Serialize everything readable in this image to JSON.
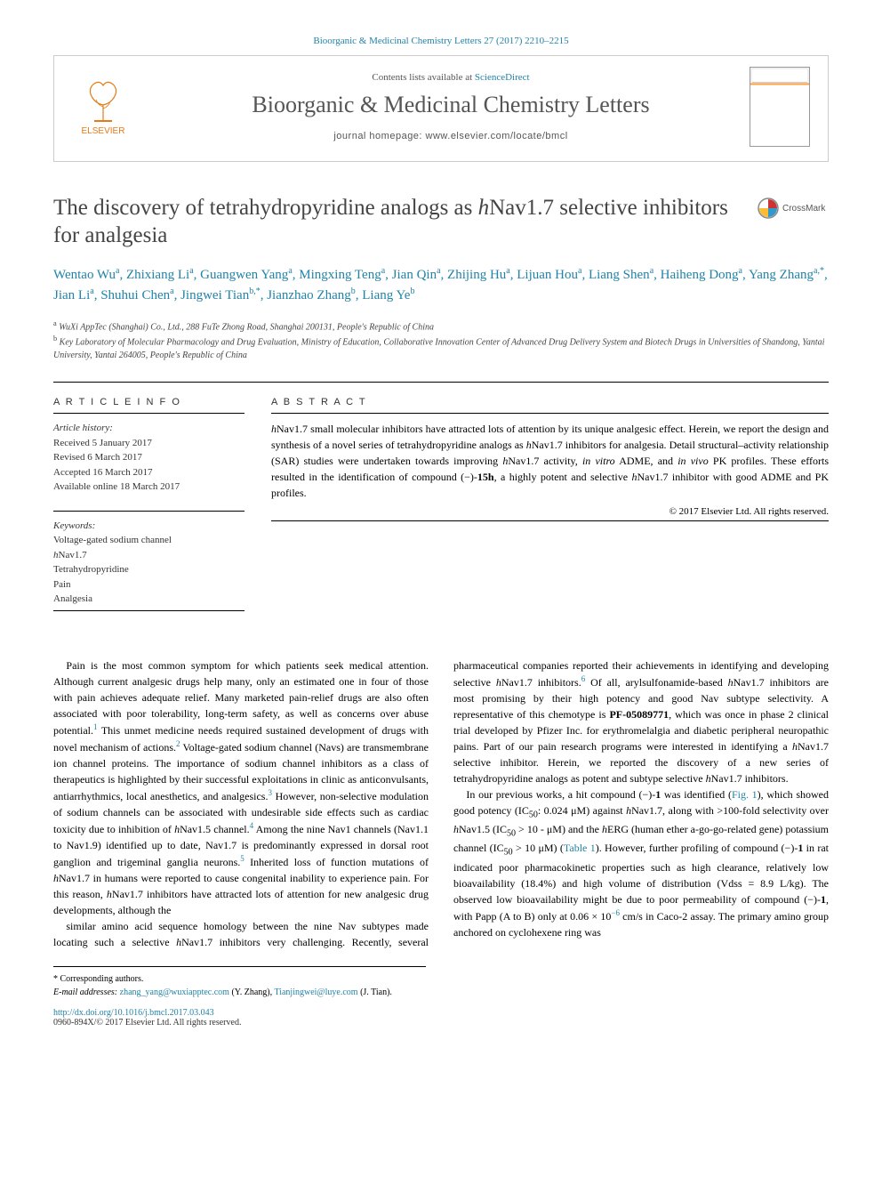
{
  "citation": "Bioorganic & Medicinal Chemistry Letters 27 (2017) 2210–2215",
  "header": {
    "publisher": "ELSEVIER",
    "availLine": "Contents lists available at ",
    "availLink": "ScienceDirect",
    "journal": "Bioorganic & Medicinal Chemistry Letters",
    "homepageLabel": "journal homepage: www.elsevier.com/locate/bmcl"
  },
  "crossmark": "CrossMark",
  "title_pre": "The discovery of tetrahydropyridine analogs as ",
  "title_em": "h",
  "title_post": "Nav1.7 selective inhibitors for analgesia",
  "authors_html": "Wentao Wu<sup>a</sup>, Zhixiang Li<sup>a</sup>, Guangwen Yang<sup>a</sup>, Mingxing Teng<sup>a</sup>, Jian Qin<sup>a</sup>, Zhijing Hu<sup>a</sup>, Lijuan Hou<sup>a</sup>, Liang Shen<sup>a</sup>, Haiheng Dong<sup>a</sup>, Yang Zhang<sup>a,*</sup>, Jian Li<sup>a</sup>, Shuhui Chen<sup>a</sup>, Jingwei Tian<sup>b,*</sup>, Jianzhao Zhang<sup>b</sup>, Liang Ye<sup>b</sup>",
  "affiliations": {
    "a": "WuXi AppTec (Shanghai) Co., Ltd., 288 FuTe Zhong Road, Shanghai 200131, People's Republic of China",
    "b": "Key Laboratory of Molecular Pharmacology and Drug Evaluation, Ministry of Education, Collaborative Innovation Center of Advanced Drug Delivery System and Biotech Drugs in Universities of Shandong, Yantai University, Yantai 264005, People's Republic of China"
  },
  "info": {
    "head": "A R T I C L E   I N F O",
    "historyLabel": "Article history:",
    "received": "Received 5 January 2017",
    "revised": "Revised 6 March 2017",
    "accepted": "Accepted 16 March 2017",
    "online": "Available online 18 March 2017",
    "keywordsLabel": "Keywords:",
    "keywords": [
      "Voltage-gated sodium channel",
      "hNav1.7",
      "Tetrahydropyridine",
      "Pain",
      "Analgesia"
    ]
  },
  "abstract": {
    "head": "A B S T R A C T",
    "text_html": "<em>h</em>Nav1.7 small molecular inhibitors have attracted lots of attention by its unique analgesic effect. Herein, we report the design and synthesis of a novel series of tetrahydropyridine analogs as <em>h</em>Nav1.7 inhibitors for analgesia. Detail structural–activity relationship (SAR) studies were undertaken towards improving <em>h</em>Nav1.7 activity, <em>in vitro</em> ADME, and <em>in vivo</em> PK profiles. These efforts resulted in the identification of compound (−)-<b>15h</b>, a highly potent and selective <em>h</em>Nav1.7 inhibitor with good ADME and PK profiles.",
    "copyright": "© 2017 Elsevier Ltd. All rights reserved."
  },
  "body": {
    "p1_html": "Pain is the most common symptom for which patients seek medical attention. Although current analgesic drugs help many, only an estimated one in four of those with pain achieves adequate relief. Many marketed pain-relief drugs are also often associated with poor tolerability, long-term safety, as well as concerns over abuse potential.<sup>1</sup> This unmet medicine needs required sustained development of drugs with novel mechanism of actions.<sup>2</sup> Voltage-gated sodium channel (Navs) are transmembrane ion channel proteins. The importance of sodium channel inhibitors as a class of therapeutics is highlighted by their successful exploitations in clinic as anticonvulsants, antiarrhythmics, local anesthetics, and analgesics.<sup>3</sup> However, non-selective modulation of sodium channels can be associated with undesirable side effects such as cardiac toxicity due to inhibition of <em>h</em>Nav1.5 channel.<sup>4</sup> Among the nine Nav1 channels (Nav1.1 to Nav1.9) identified up to date, Nav1.7 is predominantly expressed in dorsal root ganglion and trigeminal ganglia neurons.<sup>5</sup> Inherited loss of function mutations of <em>h</em>Nav1.7 in humans were reported to cause congenital inability to experience pain. For this reason, <em>h</em>Nav1.7 inhibitors have attracted lots of attention for new analgesic drug developments, although the",
    "p2_html": "similar amino acid sequence homology between the nine Nav subtypes made locating such a selective <em>h</em>Nav1.7 inhibitors very challenging. Recently, several pharmaceutical companies reported their achievements in identifying and developing selective <em>h</em>Nav1.7 inhibitors.<sup>6</sup> Of all, arylsulfonamide-based <em>h</em>Nav1.7 inhibitors are most promising by their high potency and good Nav subtype selectivity. A representative of this chemotype is <b>PF-05089771</b>, which was once in phase 2 clinical trial developed by Pfizer Inc. for erythromelalgia and diabetic peripheral neuropathic pains. Part of our pain research programs were interested in identifying a <em>h</em>Nav1.7 selective inhibitor. Herein, we reported the discovery of a new series of tetrahydropyridine analogs as potent and subtype selective <em>h</em>Nav1.7 inhibitors.",
    "p3_html": "In our previous works, a hit compound (−)-<b>1</b> was identified (<a>Fig. 1</a>), which showed good potency (IC<sub>50</sub>: 0.024 μM) against <em>h</em>Nav1.7, along with &gt;100-fold selectivity over <em>h</em>Nav1.5 (IC<sub>50</sub> &gt; 10 - μM) and the <em>h</em>ERG (human ether a-go-go-related gene) potassium channel (IC<sub>50</sub> &gt; 10 μM) (<a>Table 1</a>). However, further profiling of compound (−)-<b>1</b> in rat indicated poor pharmacokinetic properties such as high clearance, relatively low bioavailability (18.4%) and high volume of distribution (Vdss = 8.9 L/kg). The observed low bioavailability might be due to poor permeability of compound (−)-<b>1</b>, with Papp (A to B) only at 0.06 × 10<sup>−6</sup> cm/s in Caco-2 assay. The primary amino group anchored on cyclohexene ring was"
  },
  "footnotes": {
    "corresp": "* Corresponding authors.",
    "emailLabel": "E-mail addresses:",
    "email1": "zhang_yang@wuxiapptec.com",
    "name1": " (Y. Zhang), ",
    "email2": "Tianjingwei@luye.com",
    "name2": " (J. Tian)."
  },
  "doi": {
    "url": "http://dx.doi.org/10.1016/j.bmcl.2017.03.043",
    "rights": "0960-894X/© 2017 Elsevier Ltd. All rights reserved."
  },
  "colors": {
    "link": "#2183a7",
    "publisher": "#e67a17"
  }
}
